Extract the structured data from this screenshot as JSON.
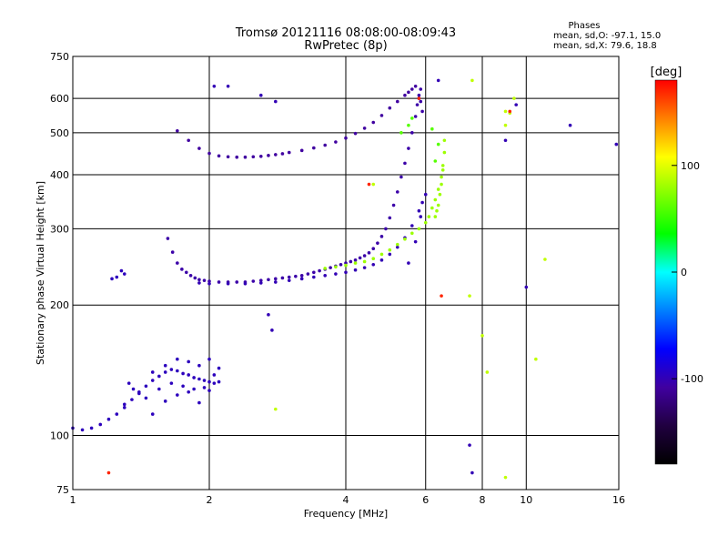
{
  "chart_data": {
    "type": "scatter",
    "title": "Tromsø 20121116 08:08:00-08:09:43",
    "subtitle": "RwPretec (8p)",
    "xlabel": "Frequency [MHz]",
    "ylabel": "Stationary phase Virtual Height [km]",
    "x_scale": "log",
    "y_scale": "log",
    "xlim": [
      1,
      16
    ],
    "ylim": [
      75,
      750
    ],
    "x_ticks": [
      1,
      2,
      4,
      6,
      8,
      10,
      16
    ],
    "x_tick_labels": [
      "1",
      "2",
      "4",
      "6",
      "8",
      "10",
      "16"
    ],
    "y_ticks": [
      75,
      100,
      200,
      300,
      400,
      500,
      600,
      750
    ],
    "y_tick_labels": [
      "75",
      "100",
      "200",
      "300",
      "400",
      "500",
      "600",
      "750"
    ],
    "x_gridlines": [
      1,
      2,
      4,
      6,
      8,
      10,
      16
    ],
    "y_gridlines": [
      100,
      200,
      300,
      400,
      500,
      600
    ],
    "grid": true,
    "stats": {
      "heading": "Phases",
      "line_o": "mean, sd,O: -97.1, 15.0",
      "line_x": "mean, sd,X:  79.6, 18.8"
    },
    "colorbar": {
      "label": "[deg]",
      "range": [
        -180,
        180
      ],
      "ticks": [
        100,
        0,
        -100
      ],
      "tick_labels": [
        "100",
        "0",
        "-100"
      ],
      "colors": [
        "#ff0000",
        "#ff8000",
        "#ffff00",
        "#80ff00",
        "#00ff00",
        "#00ffff",
        "#0080ff",
        "#0000ff",
        "#4000a0",
        "#200040",
        "#000000"
      ]
    },
    "series": [
      {
        "mode": "O",
        "phase_deg": -97,
        "x": [
          1.0,
          1.05,
          1.1,
          1.15,
          1.2,
          1.25,
          1.3,
          1.35,
          1.4,
          1.45,
          1.5,
          1.55,
          1.6,
          1.65,
          1.7,
          1.75,
          1.8,
          1.85,
          1.9,
          1.95,
          2.0,
          2.05,
          2.1,
          1.3,
          1.4,
          1.5,
          1.6,
          1.7,
          1.8,
          1.9,
          2.0,
          1.45,
          1.55,
          1.65,
          1.75,
          1.85,
          1.95,
          2.05,
          1.5,
          1.6,
          1.7,
          1.8,
          1.9,
          2.0,
          2.1,
          1.33,
          1.36,
          1.22,
          1.25,
          1.3,
          1.28
        ],
        "y": [
          104,
          103,
          104,
          106,
          109,
          112,
          116,
          121,
          126,
          130,
          134,
          137,
          140,
          142,
          141,
          139,
          138,
          136,
          135,
          134,
          133,
          132,
          133,
          118,
          125,
          140,
          145,
          150,
          148,
          145,
          150,
          122,
          128,
          132,
          130,
          128,
          129,
          138,
          112,
          120,
          124,
          126,
          119,
          127,
          143,
          132,
          128,
          230,
          232,
          236,
          240
        ]
      },
      {
        "mode": "O",
        "phase_deg": -105,
        "x": [
          1.62,
          1.66,
          1.7,
          1.74,
          1.78,
          1.82,
          1.86,
          1.9,
          1.95,
          2.0,
          2.1,
          2.2,
          2.3,
          2.4,
          2.5,
          2.6,
          2.7,
          2.8,
          2.9,
          3.0,
          3.1,
          3.2,
          3.3,
          3.4,
          3.5,
          3.6,
          3.7,
          3.8,
          3.9,
          4.0,
          4.1,
          4.2,
          4.3,
          4.4,
          4.5,
          4.6,
          4.7,
          4.8,
          4.9,
          5.0,
          5.1,
          5.2,
          5.3,
          5.4,
          5.5,
          5.6,
          5.7,
          5.75,
          5.8,
          5.8,
          5.85,
          5.85,
          5.9
        ],
        "y": [
          285,
          265,
          250,
          242,
          238,
          234,
          231,
          229,
          228,
          227,
          226,
          226,
          226,
          226,
          227,
          228,
          229,
          230,
          231,
          232,
          233,
          234,
          236,
          238,
          240,
          242,
          244,
          246,
          248,
          250,
          252,
          254,
          257,
          260,
          264,
          270,
          278,
          288,
          300,
          318,
          340,
          365,
          395,
          425,
          460,
          500,
          545,
          580,
          610,
          600,
          630,
          590,
          560
        ]
      },
      {
        "mode": "O",
        "phase_deg": -100,
        "x": [
          1.9,
          2.0,
          2.2,
          2.4,
          2.6,
          2.8,
          3.0,
          3.2,
          3.4,
          3.6,
          3.8,
          4.0,
          4.2,
          4.4,
          4.6,
          4.8,
          5.0,
          5.2,
          5.4,
          5.6,
          5.8,
          5.9,
          6.0,
          5.5,
          5.7,
          5.85
        ],
        "y": [
          225,
          224,
          224,
          224,
          225,
          226,
          228,
          230,
          232,
          234,
          236,
          238,
          241,
          244,
          248,
          254,
          262,
          272,
          286,
          305,
          330,
          345,
          360,
          250,
          280,
          320
        ]
      },
      {
        "mode": "O",
        "phase_deg": -108,
        "x": [
          1.7,
          1.8,
          1.9,
          2.0,
          2.1,
          2.2,
          2.3,
          2.4,
          2.5,
          2.6,
          2.7,
          2.8,
          2.9,
          3.0,
          3.2,
          3.4,
          3.6,
          3.8,
          4.0,
          4.2,
          4.4,
          4.6,
          4.8,
          5.0,
          5.2,
          5.4,
          5.5,
          5.6,
          5.7
        ],
        "y": [
          505,
          480,
          460,
          448,
          442,
          440,
          439,
          439,
          440,
          441,
          443,
          445,
          447,
          450,
          455,
          461,
          468,
          476,
          486,
          498,
          512,
          528,
          548,
          570,
          590,
          610,
          620,
          630,
          640
        ]
      },
      {
        "mode": "X",
        "phase_deg": 80,
        "x": [
          3.6,
          3.8,
          4.0,
          4.2,
          4.4,
          4.6,
          4.8,
          5.0,
          5.2,
          5.4,
          5.6,
          5.8,
          6.0,
          6.1,
          6.2,
          6.3,
          6.4,
          6.5,
          6.55,
          6.6,
          6.6,
          6.55,
          6.5,
          6.45,
          6.4,
          6.35,
          6.3
        ],
        "y": [
          243,
          245,
          247,
          250,
          252,
          256,
          262,
          268,
          276,
          284,
          293,
          300,
          310,
          320,
          335,
          350,
          370,
          395,
          420,
          450,
          480,
          410,
          380,
          360,
          340,
          330,
          320
        ]
      },
      {
        "mode": "X",
        "phase_deg": 60,
        "x": [
          5.3,
          5.5,
          5.6,
          6.2,
          6.4,
          6.3
        ],
        "y": [
          500,
          520,
          540,
          510,
          470,
          430
        ]
      },
      {
        "mode": "scattered",
        "phase_deg": -100,
        "x": [
          2.05,
          2.2,
          2.6,
          2.8,
          6.4,
          7.5,
          7.6,
          9.0,
          9.5,
          10.0,
          12.5,
          15.8,
          2.7,
          2.75
        ],
        "y": [
          640,
          640,
          610,
          590,
          660,
          95,
          82,
          480,
          580,
          220,
          520,
          470,
          190,
          175
        ]
      },
      {
        "mode": "scattered",
        "phase_deg": 90,
        "x": [
          9.0,
          9.0,
          9.2,
          9.0,
          9.4,
          8.2,
          8.0,
          7.5,
          10.5,
          11.0,
          4.6,
          2.8,
          7.6
        ],
        "y": [
          560,
          520,
          555,
          80,
          600,
          140,
          170,
          210,
          150,
          255,
          380,
          115,
          660
        ]
      },
      {
        "mode": "scattered",
        "phase_deg": 170,
        "x": [
          1.2,
          4.5,
          5.8,
          6.5,
          9.2
        ],
        "y": [
          82,
          380,
          600,
          210,
          560
        ]
      }
    ]
  }
}
